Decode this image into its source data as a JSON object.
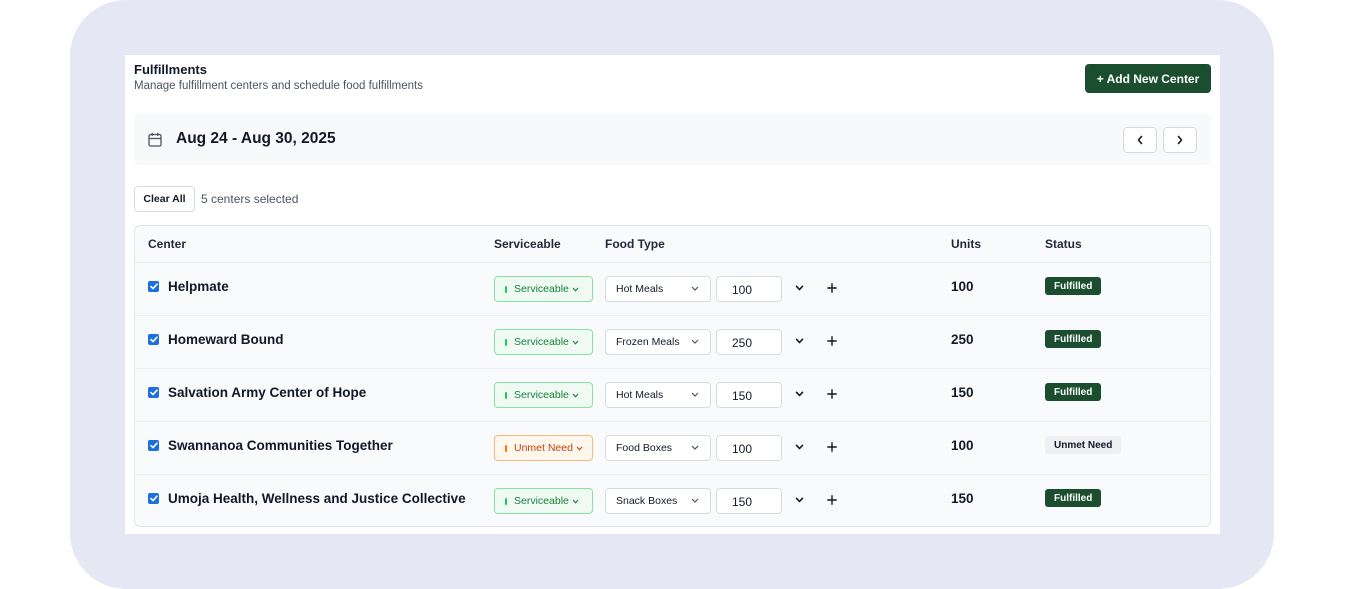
{
  "header": {
    "title": "Fulfillments",
    "subtitle": "Manage fulfillment centers and schedule food fulfillments",
    "add_button": "+ Add New Center"
  },
  "week": {
    "label": "Aug 24 - Aug 30, 2025"
  },
  "selection": {
    "clear_label": "Clear All",
    "count_label": "5 centers selected"
  },
  "table": {
    "columns": {
      "center": "Center",
      "serviceable": "Serviceable",
      "food_type": "Food Type",
      "units": "Units",
      "status": "Status"
    },
    "rows": [
      {
        "name": "Helpmate",
        "checked": true,
        "serviceable": "Serviceable",
        "food_type": "Hot Meals",
        "quantity": "100",
        "units": "100",
        "status": "Fulfilled"
      },
      {
        "name": "Homeward Bound",
        "checked": true,
        "serviceable": "Serviceable",
        "food_type": "Frozen Meals",
        "quantity": "250",
        "units": "250",
        "status": "Fulfilled"
      },
      {
        "name": "Salvation Army Center of Hope",
        "checked": true,
        "serviceable": "Serviceable",
        "food_type": "Hot Meals",
        "quantity": "150",
        "units": "150",
        "status": "Fulfilled"
      },
      {
        "name": "Swannanoa Communities Together",
        "checked": true,
        "serviceable": "Unmet Need",
        "food_type": "Food Boxes",
        "quantity": "100",
        "units": "100",
        "status": "Unmet Need"
      },
      {
        "name": "Umoja Health, Wellness and Justice Collective",
        "checked": true,
        "serviceable": "Serviceable",
        "food_type": "Snack Boxes",
        "quantity": "150",
        "units": "150",
        "status": "Fulfilled"
      }
    ]
  },
  "icons": {
    "calendar": "calendar-icon",
    "prev": "chevron-left-icon",
    "next": "chevron-right-icon",
    "expand": "chevron-down-icon",
    "add": "plus-icon",
    "checkbox": "check-icon"
  },
  "colors": {
    "primary": "#1b4d2f",
    "serviceable": "#15803d",
    "unmet": "#c2410c",
    "checkbox": "#1d6fe0",
    "frame": "#e6e7f4"
  }
}
